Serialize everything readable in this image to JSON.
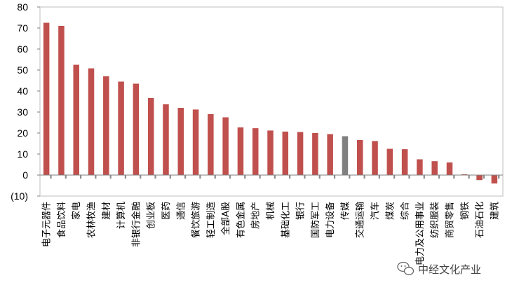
{
  "chart_data": {
    "type": "bar",
    "title": "",
    "xlabel": "",
    "ylabel": "",
    "ylim": [
      -10,
      80
    ],
    "yticks": [
      -10,
      0,
      10,
      20,
      30,
      40,
      50,
      60,
      70,
      80
    ],
    "ytick_labels": [
      "(10)",
      "0",
      "10",
      "20",
      "30",
      "40",
      "50",
      "60",
      "70",
      "80"
    ],
    "grid": false,
    "legend": "none",
    "categories": [
      "电子元器件",
      "食品饮料",
      "家电",
      "农林牧渔",
      "建材",
      "计算机",
      "非银行金融",
      "创业板",
      "医药",
      "通信",
      "餐饮旅游",
      "轻工制造",
      "全部A股",
      "有色金属",
      "房地产",
      "机械",
      "基础化工",
      "银行",
      "国防军工",
      "电力设备",
      "传媒",
      "交通运输",
      "汽车",
      "煤炭",
      "综合",
      "电力及公用事业",
      "纺织服装",
      "商贸零售",
      "钢铁",
      "石油石化",
      "建筑"
    ],
    "values": [
      72.5,
      71,
      52.5,
      50.8,
      47,
      44.5,
      43.5,
      36.7,
      33.7,
      32,
      31.2,
      29,
      27.5,
      22.7,
      22.3,
      21.2,
      20.7,
      20.5,
      20,
      19.5,
      18.5,
      16.7,
      16.2,
      12.5,
      12.3,
      7.5,
      6.6,
      6,
      0.4,
      -2.4,
      -4
    ],
    "highlight_index": 20,
    "colors": {
      "bar": "#C0504D",
      "highlight": "#808080",
      "secondary_bar": "#8C8C8C",
      "neg_tick_label": "#C00000",
      "axis": "#7F7F7F"
    }
  },
  "watermark": {
    "text": "中经文化产业",
    "icon": "wechat-icon"
  }
}
